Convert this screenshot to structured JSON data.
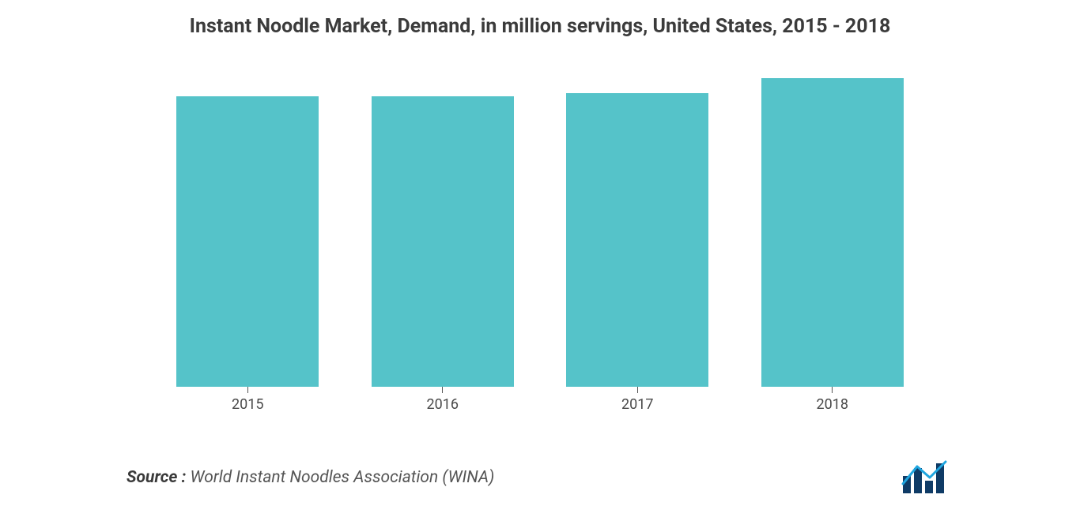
{
  "chart": {
    "type": "bar",
    "title": "Instant Noodle Market, Demand, in million servings, United States, 2015 - 2018",
    "title_fontsize": 25,
    "title_fontweight": 700,
    "title_color": "#3b3b3b",
    "categories": [
      "2015",
      "2016",
      "2017",
      "2018"
    ],
    "values": [
      92,
      92,
      93,
      100
    ],
    "ylim": [
      0,
      100
    ],
    "bar_color": "#55c3c9",
    "bar_width": 0.74,
    "background_color": "#ffffff",
    "xlabel_fontsize": 18,
    "xlabel_color": "#4a4a4a",
    "tick_color": "#555555",
    "show_grid": false,
    "show_y_axis": false
  },
  "source": {
    "label": "Source :",
    "text": "World Instant Noodles Association (WINA)",
    "fontsize": 21,
    "font_style": "italic",
    "label_color": "#3a3a3a",
    "text_color": "#555555"
  },
  "logo": {
    "name": "mordor-intelligence-logo",
    "bar_color": "#0f3b66",
    "line_color": "#1fa6e0"
  }
}
